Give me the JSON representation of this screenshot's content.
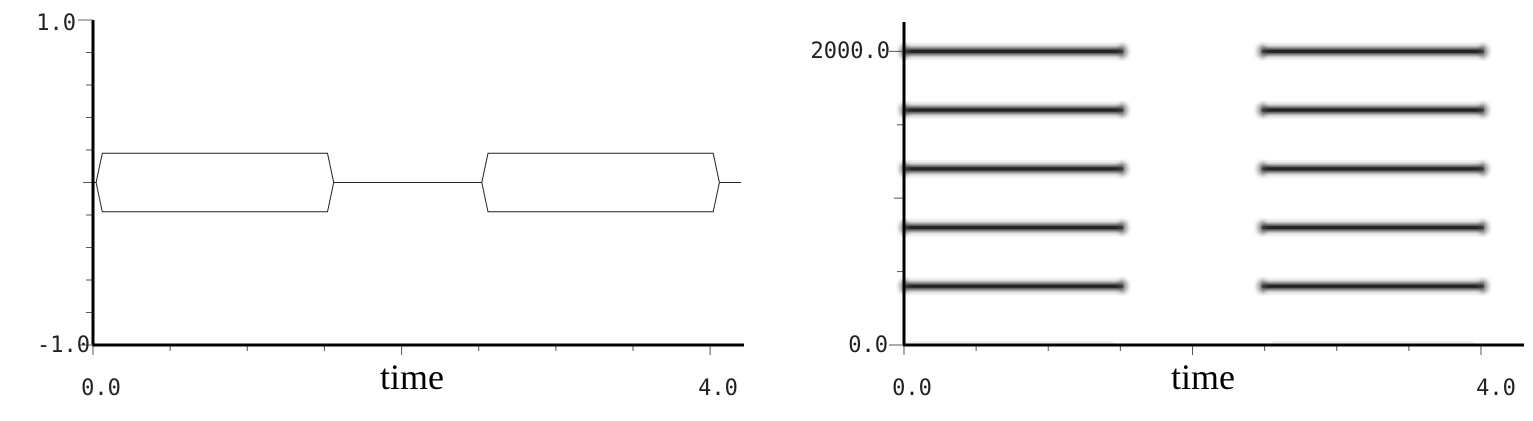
{
  "chart_data": [
    {
      "type": "line",
      "panel": "waveform",
      "xlabel": "time",
      "ylabel": "",
      "xlim": [
        0.0,
        4.2
      ],
      "ylim": [
        -1.0,
        1.0
      ],
      "x_tick_labels": [
        "0.0",
        "4.0"
      ],
      "y_tick_labels": [
        "1.0",
        "-1.0"
      ],
      "grid": false,
      "series": [
        {
          "envelope_upper": [
            [
              0.02,
              0.0
            ],
            [
              0.06,
              0.18
            ],
            [
              1.52,
              0.18
            ],
            [
              1.56,
              0.0
            ],
            [
              2.52,
              0.0
            ],
            [
              2.56,
              0.18
            ],
            [
              4.02,
              0.18
            ],
            [
              4.06,
              0.0
            ],
            [
              4.2,
              0.0
            ]
          ],
          "envelope_lower": [
            [
              0.02,
              0.0
            ],
            [
              0.06,
              -0.18
            ],
            [
              1.52,
              -0.18
            ],
            [
              1.56,
              0.0
            ],
            [
              2.52,
              0.0
            ],
            [
              2.56,
              -0.18
            ],
            [
              4.02,
              -0.18
            ],
            [
              4.06,
              0.0
            ],
            [
              4.2,
              0.0
            ]
          ]
        }
      ]
    },
    {
      "type": "heatmap",
      "panel": "spectrogram",
      "xlabel": "time",
      "ylabel": "",
      "xlim": [
        0.0,
        4.1
      ],
      "ylim": [
        0.0,
        2200.0
      ],
      "x_tick_labels": [
        "0.0",
        "4.0"
      ],
      "y_tick_labels": [
        "2000.0",
        "0.0"
      ],
      "grid": false,
      "bands": [
        {
          "freq": 400,
          "x_start": 0.0,
          "x_end": 1.52
        },
        {
          "freq": 800,
          "x_start": 0.0,
          "x_end": 1.52
        },
        {
          "freq": 1200,
          "x_start": 0.0,
          "x_end": 1.52
        },
        {
          "freq": 1600,
          "x_start": 0.0,
          "x_end": 1.52
        },
        {
          "freq": 2000,
          "x_start": 0.0,
          "x_end": 1.52
        },
        {
          "freq": 400,
          "x_start": 2.48,
          "x_end": 4.02
        },
        {
          "freq": 800,
          "x_start": 2.48,
          "x_end": 4.02
        },
        {
          "freq": 1200,
          "x_start": 2.48,
          "x_end": 4.02
        },
        {
          "freq": 1600,
          "x_start": 2.48,
          "x_end": 4.02
        },
        {
          "freq": 2000,
          "x_start": 2.48,
          "x_end": 4.02
        }
      ]
    }
  ]
}
